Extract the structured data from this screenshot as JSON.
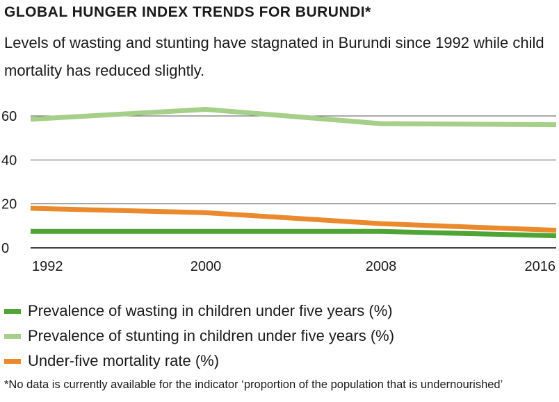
{
  "header": {
    "title": "GLOBAL HUNGER INDEX TRENDS FOR BURUNDI*",
    "subtitle": "Levels of wasting and stunting have stagnated in Burundi since 1992 while child mortality has reduced slightly."
  },
  "chart_data": {
    "type": "line",
    "x": [
      1992,
      2000,
      2008,
      2016
    ],
    "x_tick_labels": [
      "1992",
      "2000",
      "2008",
      "2016"
    ],
    "y_ticks": [
      0,
      20,
      40,
      60
    ],
    "ylim": [
      0,
      65
    ],
    "grid": true,
    "legend_position": "bottom",
    "series": [
      {
        "name": "Prevalence of wasting in children under five years (%)",
        "color": "#4ea435",
        "points": [
          [
            1992,
            7.5
          ],
          [
            2000,
            7.5
          ],
          [
            2008,
            7.5
          ],
          [
            2016,
            5.5
          ]
        ]
      },
      {
        "name": "Prevalence of stunting in children under five years (%)",
        "color": "#a6cf8a",
        "points": [
          [
            1992,
            58.5
          ],
          [
            2000,
            63
          ],
          [
            2008,
            56.5
          ],
          [
            2016,
            56
          ]
        ]
      },
      {
        "name": "Under-five mortality rate (%)",
        "color": "#ea8a2c",
        "points": [
          [
            1992,
            18
          ],
          [
            2000,
            16
          ],
          [
            2008,
            11
          ],
          [
            2016,
            8
          ]
        ]
      }
    ]
  },
  "footnote": "*No data is currently available for the indicator ‘proportion of the population that is undernourished’"
}
